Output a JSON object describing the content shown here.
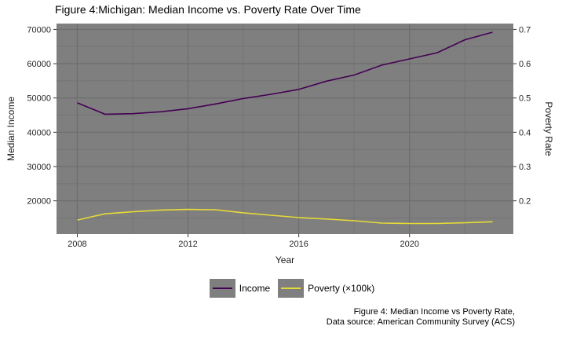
{
  "chart_data": {
    "type": "line",
    "title": "Figure 4:Michigan: Median Income vs. Poverty Rate Over Time",
    "xlabel": "Year",
    "ylabel_left": "Median Income",
    "ylabel_right": "Poverty Rate",
    "x": [
      2008,
      2009,
      2010,
      2011,
      2012,
      2013,
      2014,
      2015,
      2016,
      2017,
      2018,
      2019,
      2020,
      2021,
      2022,
      2023
    ],
    "series": [
      {
        "name": "Income",
        "axis": "left",
        "color": "#440154",
        "values": [
          48591,
          45255,
          45413,
          45981,
          46859,
          48273,
          49847,
          51084,
          52492,
          54909,
          56697,
          59584,
          61400,
          63202,
          66986,
          69183
        ]
      },
      {
        "name": "Poverty (×100k)",
        "axis": "left",
        "color": "#E6DA37",
        "scale": 100000,
        "values": [
          0.144,
          0.162,
          0.168,
          0.173,
          0.175,
          0.174,
          0.165,
          0.158,
          0.151,
          0.147,
          0.142,
          0.135,
          0.134,
          0.134,
          0.136,
          0.139
        ]
      }
    ],
    "xlim": [
      2007.25,
      2023.75
    ],
    "ylim": [
      10300,
      71700
    ],
    "x_ticks": [
      2008,
      2012,
      2016,
      2020
    ],
    "x_minor_ticks": [
      2010,
      2014,
      2018,
      2022
    ],
    "y_ticks_left": [
      20000,
      30000,
      40000,
      50000,
      60000,
      70000
    ],
    "y_minor_ticks": [
      15000,
      25000,
      35000,
      45000,
      55000,
      65000
    ],
    "y_ticks_right": [
      0.2,
      0.3,
      0.4,
      0.5,
      0.6,
      0.7
    ],
    "right_axis_scale": 100000,
    "grid": true,
    "legend_position": "bottom",
    "panel_bg": "#7F7F7F",
    "grid_major_color": "#6E6E6E",
    "grid_minor_color": "#757575",
    "tick_color": "#333333",
    "tick_label_color": "#262626"
  },
  "legend": {
    "items": [
      {
        "label": "Income",
        "color": "#440154"
      },
      {
        "label": "Poverty (×100k)",
        "color": "#E6DA37"
      }
    ]
  },
  "caption": {
    "line1": "Figure 4: Median Income vs Poverty Rate,",
    "line2": "Data source: American Community Survey (ACS)"
  }
}
